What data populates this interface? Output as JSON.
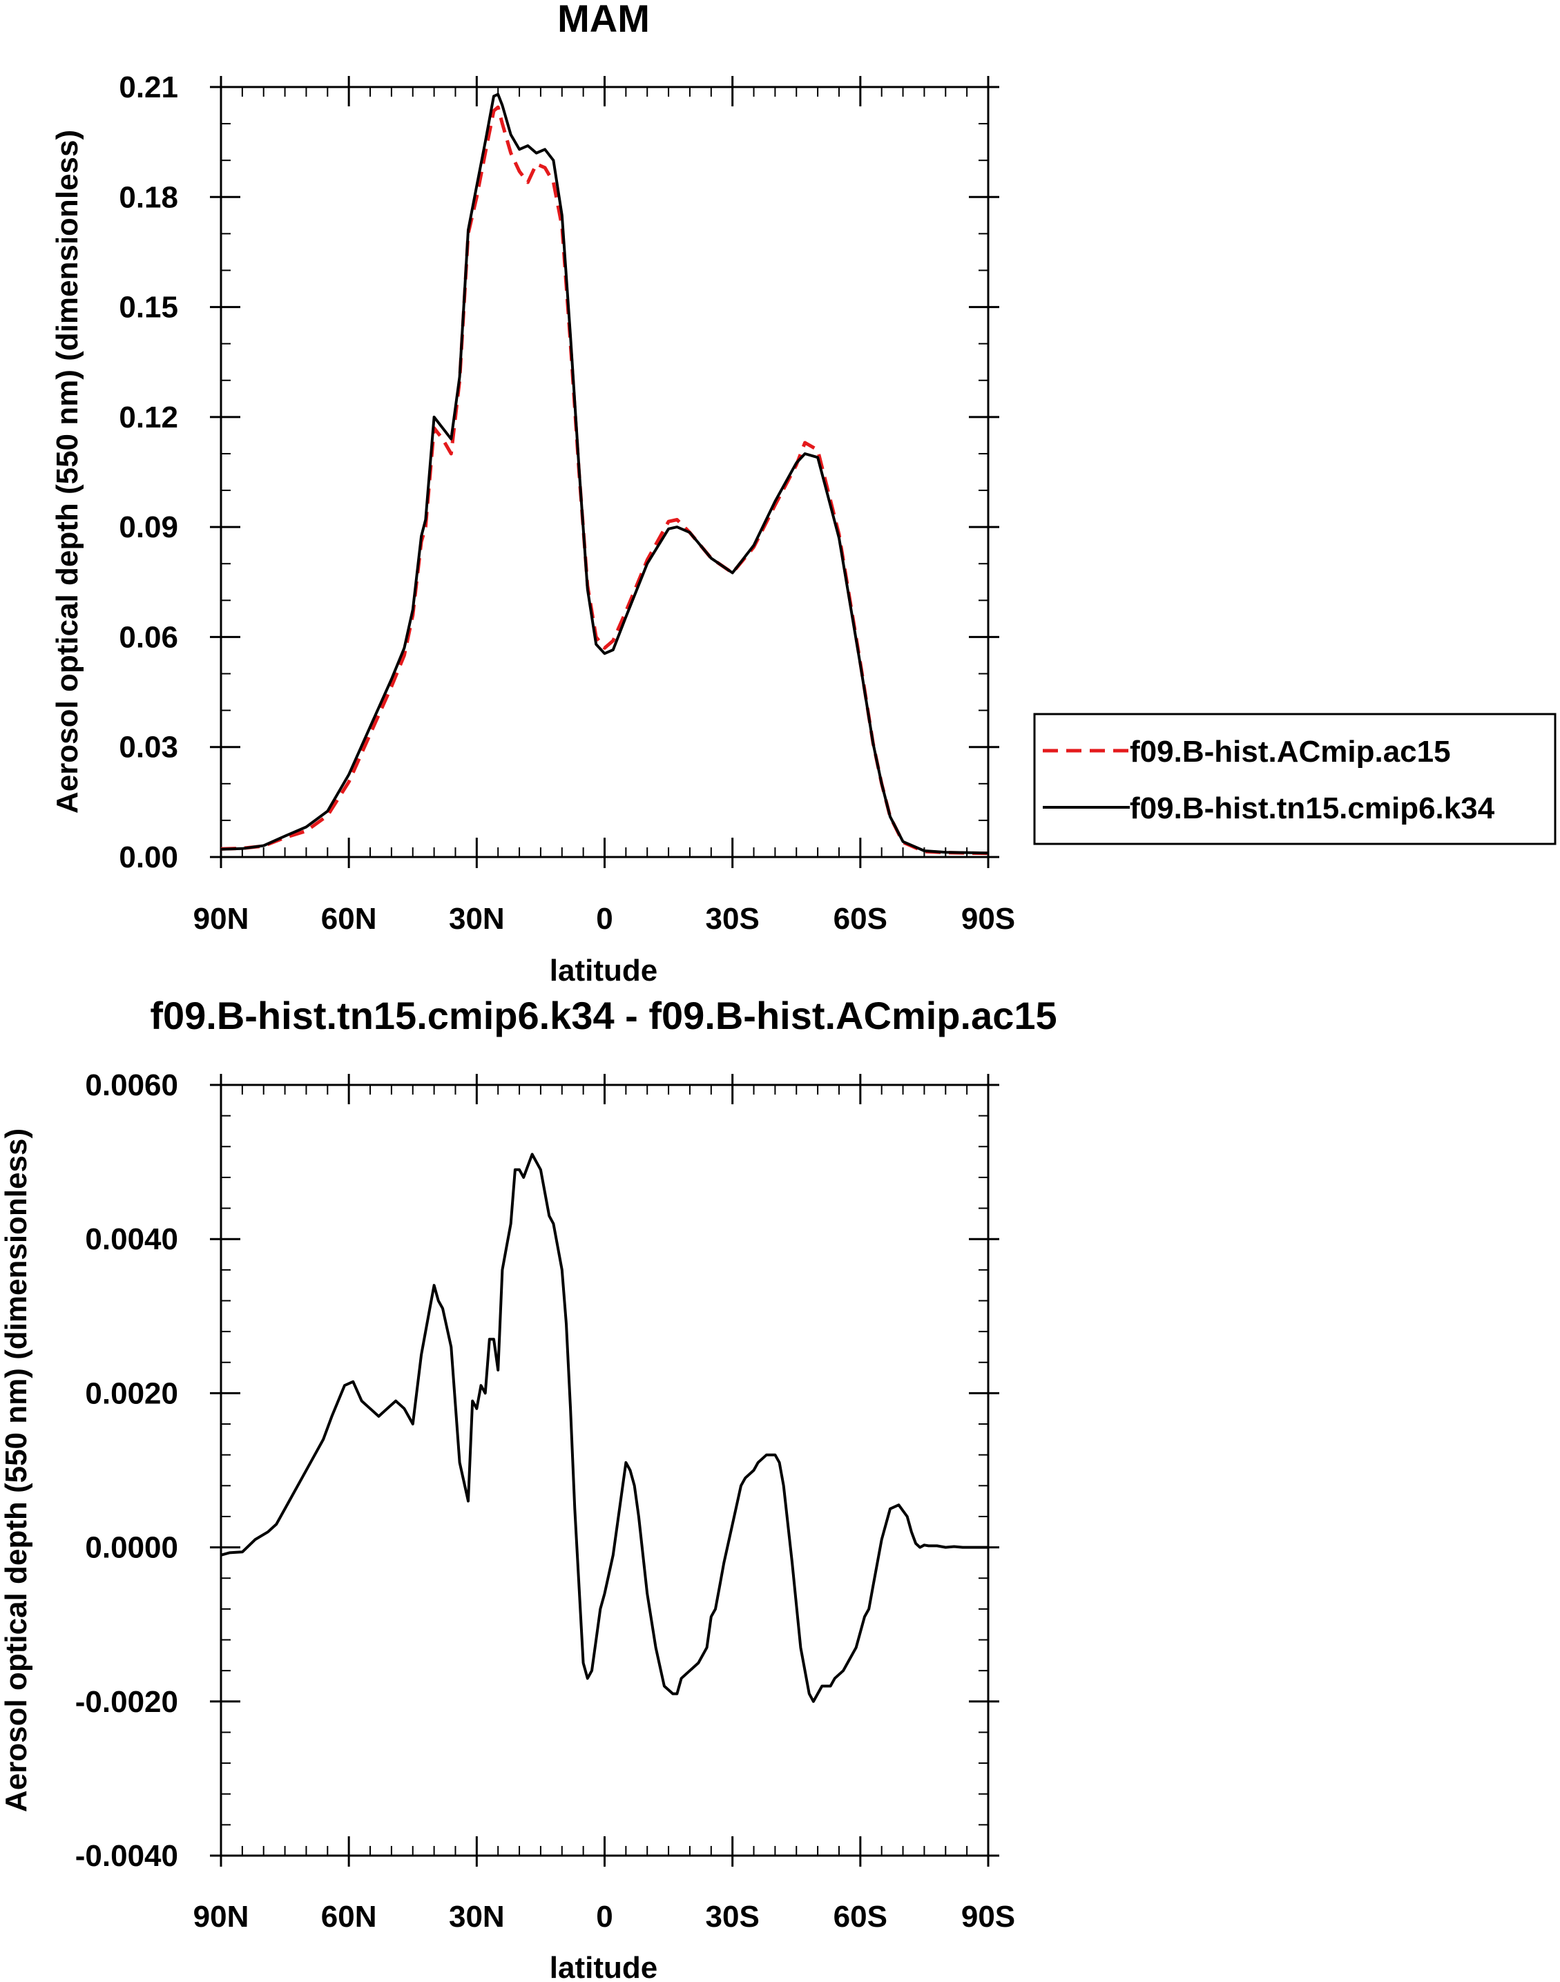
{
  "colors": {
    "control": "#e41a1c",
    "test": "#000000",
    "axis": "#000000"
  },
  "chart_data": [
    {
      "type": "line",
      "title": "MAM",
      "xlabel": "latitude",
      "ylabel": "Aerosol optical depth (550 nm) (dimensionless)",
      "xlim": [
        90,
        -90
      ],
      "ylim": [
        0.0,
        0.21
      ],
      "xticks": [
        90,
        60,
        30,
        0,
        -30,
        -60,
        -90
      ],
      "xtick_labels": [
        "90N",
        "60N",
        "30N",
        "0",
        "30S",
        "60S",
        "90S"
      ],
      "yticks": [
        0.0,
        0.03,
        0.06,
        0.09,
        0.12,
        0.15,
        0.18,
        0.21
      ],
      "ytick_labels": [
        "0.00",
        "0.03",
        "0.06",
        "0.09",
        "0.12",
        "0.15",
        "0.18",
        "0.21"
      ],
      "legend": {
        "position": "right",
        "entries": [
          "f09.B-hist.ACmip.ac15",
          "f09.B-hist.tn15.cmip6.k34"
        ]
      },
      "series": [
        {
          "name": "f09.B-hist.ACmip.ac15",
          "style": "dashed",
          "color": "#e41a1c",
          "x": [
            90,
            85,
            80,
            75,
            70,
            65,
            60,
            55,
            50,
            47,
            45,
            43,
            42,
            40,
            38,
            36,
            34,
            32,
            30,
            28,
            26,
            25,
            24,
            22,
            20,
            18,
            16,
            14,
            12,
            10,
            8,
            6,
            4,
            2,
            0,
            -2,
            -5,
            -10,
            -15,
            -17,
            -20,
            -25,
            -30,
            -35,
            -40,
            -45,
            -47,
            -50,
            -55,
            -60,
            -63,
            -65,
            -67,
            -70,
            -75,
            -80,
            -85,
            -90
          ],
          "y": [
            0.0022,
            0.0024,
            0.003,
            0.0053,
            0.0071,
            0.0113,
            0.0205,
            0.0335,
            0.0465,
            0.055,
            0.066,
            0.086,
            0.09,
            0.117,
            0.114,
            0.11,
            0.13,
            0.17,
            0.18,
            0.192,
            0.2035,
            0.2045,
            0.2,
            0.192,
            0.187,
            0.184,
            0.189,
            0.188,
            0.184,
            0.172,
            0.14,
            0.105,
            0.074,
            0.06,
            0.057,
            0.059,
            0.067,
            0.081,
            0.0915,
            0.092,
            0.0885,
            0.0815,
            0.0775,
            0.0845,
            0.096,
            0.107,
            0.113,
            0.111,
            0.088,
            0.053,
            0.031,
            0.02,
            0.011,
            0.004,
            0.0015,
            0.0012,
            0.0011,
            0.001
          ]
        },
        {
          "name": "f09.B-hist.tn15.cmip6.k34",
          "style": "solid",
          "color": "#000000",
          "x": [
            90,
            85,
            80,
            75,
            70,
            65,
            60,
            55,
            50,
            47,
            45,
            43,
            42,
            40,
            38,
            36,
            34,
            32,
            30,
            28,
            26,
            25,
            24,
            22,
            20,
            18,
            16,
            14,
            12,
            10,
            8,
            6,
            4,
            2,
            0,
            -2,
            -5,
            -10,
            -15,
            -17,
            -20,
            -25,
            -30,
            -35,
            -40,
            -45,
            -47,
            -50,
            -55,
            -60,
            -63,
            -65,
            -67,
            -70,
            -75,
            -80,
            -85,
            -90
          ],
          "y": [
            0.0021,
            0.0023,
            0.0031,
            0.0057,
            0.0082,
            0.0125,
            0.0225,
            0.0355,
            0.0485,
            0.057,
            0.0675,
            0.0875,
            0.092,
            0.12,
            0.117,
            0.114,
            0.131,
            0.171,
            0.183,
            0.195,
            0.2075,
            0.208,
            0.205,
            0.197,
            0.193,
            0.194,
            0.192,
            0.193,
            0.19,
            0.175,
            0.142,
            0.106,
            0.073,
            0.058,
            0.0555,
            0.0565,
            0.0655,
            0.08,
            0.0895,
            0.09,
            0.0885,
            0.0815,
            0.0775,
            0.085,
            0.097,
            0.1075,
            0.11,
            0.109,
            0.087,
            0.0525,
            0.031,
            0.02,
            0.011,
            0.0042,
            0.0017,
            0.0013,
            0.0012,
            0.0011
          ]
        }
      ]
    },
    {
      "type": "line",
      "title": "f09.B-hist.tn15.cmip6.k34 - f09.B-hist.ACmip.ac15",
      "xlabel": "latitude",
      "ylabel": "Aerosol optical depth (550 nm) (dimensionless)",
      "xlim": [
        90,
        -90
      ],
      "ylim": [
        -0.004,
        0.006
      ],
      "xticks": [
        90,
        60,
        30,
        0,
        -30,
        -60,
        -90
      ],
      "xtick_labels": [
        "90N",
        "60N",
        "30N",
        "0",
        "30S",
        "60S",
        "90S"
      ],
      "yticks": [
        -0.004,
        -0.002,
        0.0,
        0.002,
        0.004,
        0.006
      ],
      "ytick_labels": [
        "-0.0040",
        "-0.0020",
        "0.0000",
        "0.0020",
        "0.0040",
        "0.0060"
      ],
      "series": [
        {
          "name": "f09.B-hist.tn15.cmip6.k34 - f09.B-hist.ACmip.ac15",
          "style": "solid",
          "color": "#000000",
          "x": [
            90,
            88,
            85,
            82,
            79,
            77,
            74,
            71,
            68,
            66,
            64,
            61,
            59,
            57,
            55,
            53,
            51,
            49,
            47,
            45,
            43,
            41,
            40,
            39,
            38,
            36,
            34,
            32,
            31,
            30,
            29,
            28,
            27,
            26,
            25,
            24,
            23,
            22,
            21,
            20,
            19,
            17,
            15,
            14,
            13,
            12,
            10,
            9,
            8,
            7,
            5,
            4,
            3,
            2,
            1,
            0,
            -2,
            -4,
            -5,
            -6,
            -7,
            -8,
            -10,
            -12,
            -14,
            -16,
            -17,
            -18,
            -20,
            -22,
            -24,
            -25,
            -26,
            -27,
            -28,
            -30,
            -32,
            -33,
            -35,
            -36,
            -38,
            -40,
            -41,
            -42,
            -44,
            -46,
            -48,
            -49,
            -50,
            -51,
            -52,
            -53,
            -54,
            -56,
            -57,
            -59,
            -61,
            -62,
            -63,
            -64,
            -65,
            -67,
            -69,
            -71,
            -72,
            -73,
            -74,
            -75,
            -76,
            -78,
            -80,
            -82,
            -84,
            -86,
            -88,
            -90
          ],
          "y": [
            -0.0001,
            -7e-05,
            -6e-05,
            0.0001,
            0.0002,
            0.0003,
            0.0006,
            0.0009,
            0.0012,
            0.0014,
            0.0017,
            0.0021,
            0.00215,
            0.0019,
            0.0018,
            0.0017,
            0.0018,
            0.0019,
            0.0018,
            0.0016,
            0.0025,
            0.0031,
            0.0034,
            0.0032,
            0.0031,
            0.0026,
            0.0011,
            0.0006,
            0.0019,
            0.0018,
            0.0021,
            0.002,
            0.0027,
            0.0027,
            0.0023,
            0.0036,
            0.0039,
            0.0042,
            0.0049,
            0.0049,
            0.0048,
            0.0051,
            0.0049,
            0.0046,
            0.0043,
            0.0042,
            0.0036,
            0.0029,
            0.0018,
            0.0005,
            -0.0015,
            -0.0017,
            -0.0016,
            -0.0012,
            -0.0008,
            -0.0006,
            -0.0001,
            0.0007,
            0.0011,
            0.001,
            0.0008,
            0.0004,
            -0.0006,
            -0.0013,
            -0.0018,
            -0.0019,
            -0.0019,
            -0.0017,
            -0.0016,
            -0.0015,
            -0.0013,
            -0.0009,
            -0.0008,
            -0.0005,
            -0.0002,
            0.0003,
            0.0008,
            0.0009,
            0.001,
            0.0011,
            0.0012,
            0.0012,
            0.0011,
            0.0008,
            -0.0002,
            -0.0013,
            -0.0019,
            -0.002,
            -0.0019,
            -0.0018,
            -0.0018,
            -0.0018,
            -0.0017,
            -0.0016,
            -0.0015,
            -0.0013,
            -0.0009,
            -0.0008,
            -0.0005,
            -0.0002,
            0.0001,
            0.0005,
            0.00055,
            0.0004,
            0.0002,
            5e-05,
            0.0,
            3e-05,
            2e-05,
            2e-05,
            0.0,
            1e-05,
            0.0,
            0.0,
            0.0,
            0.0
          ]
        }
      ]
    }
  ]
}
